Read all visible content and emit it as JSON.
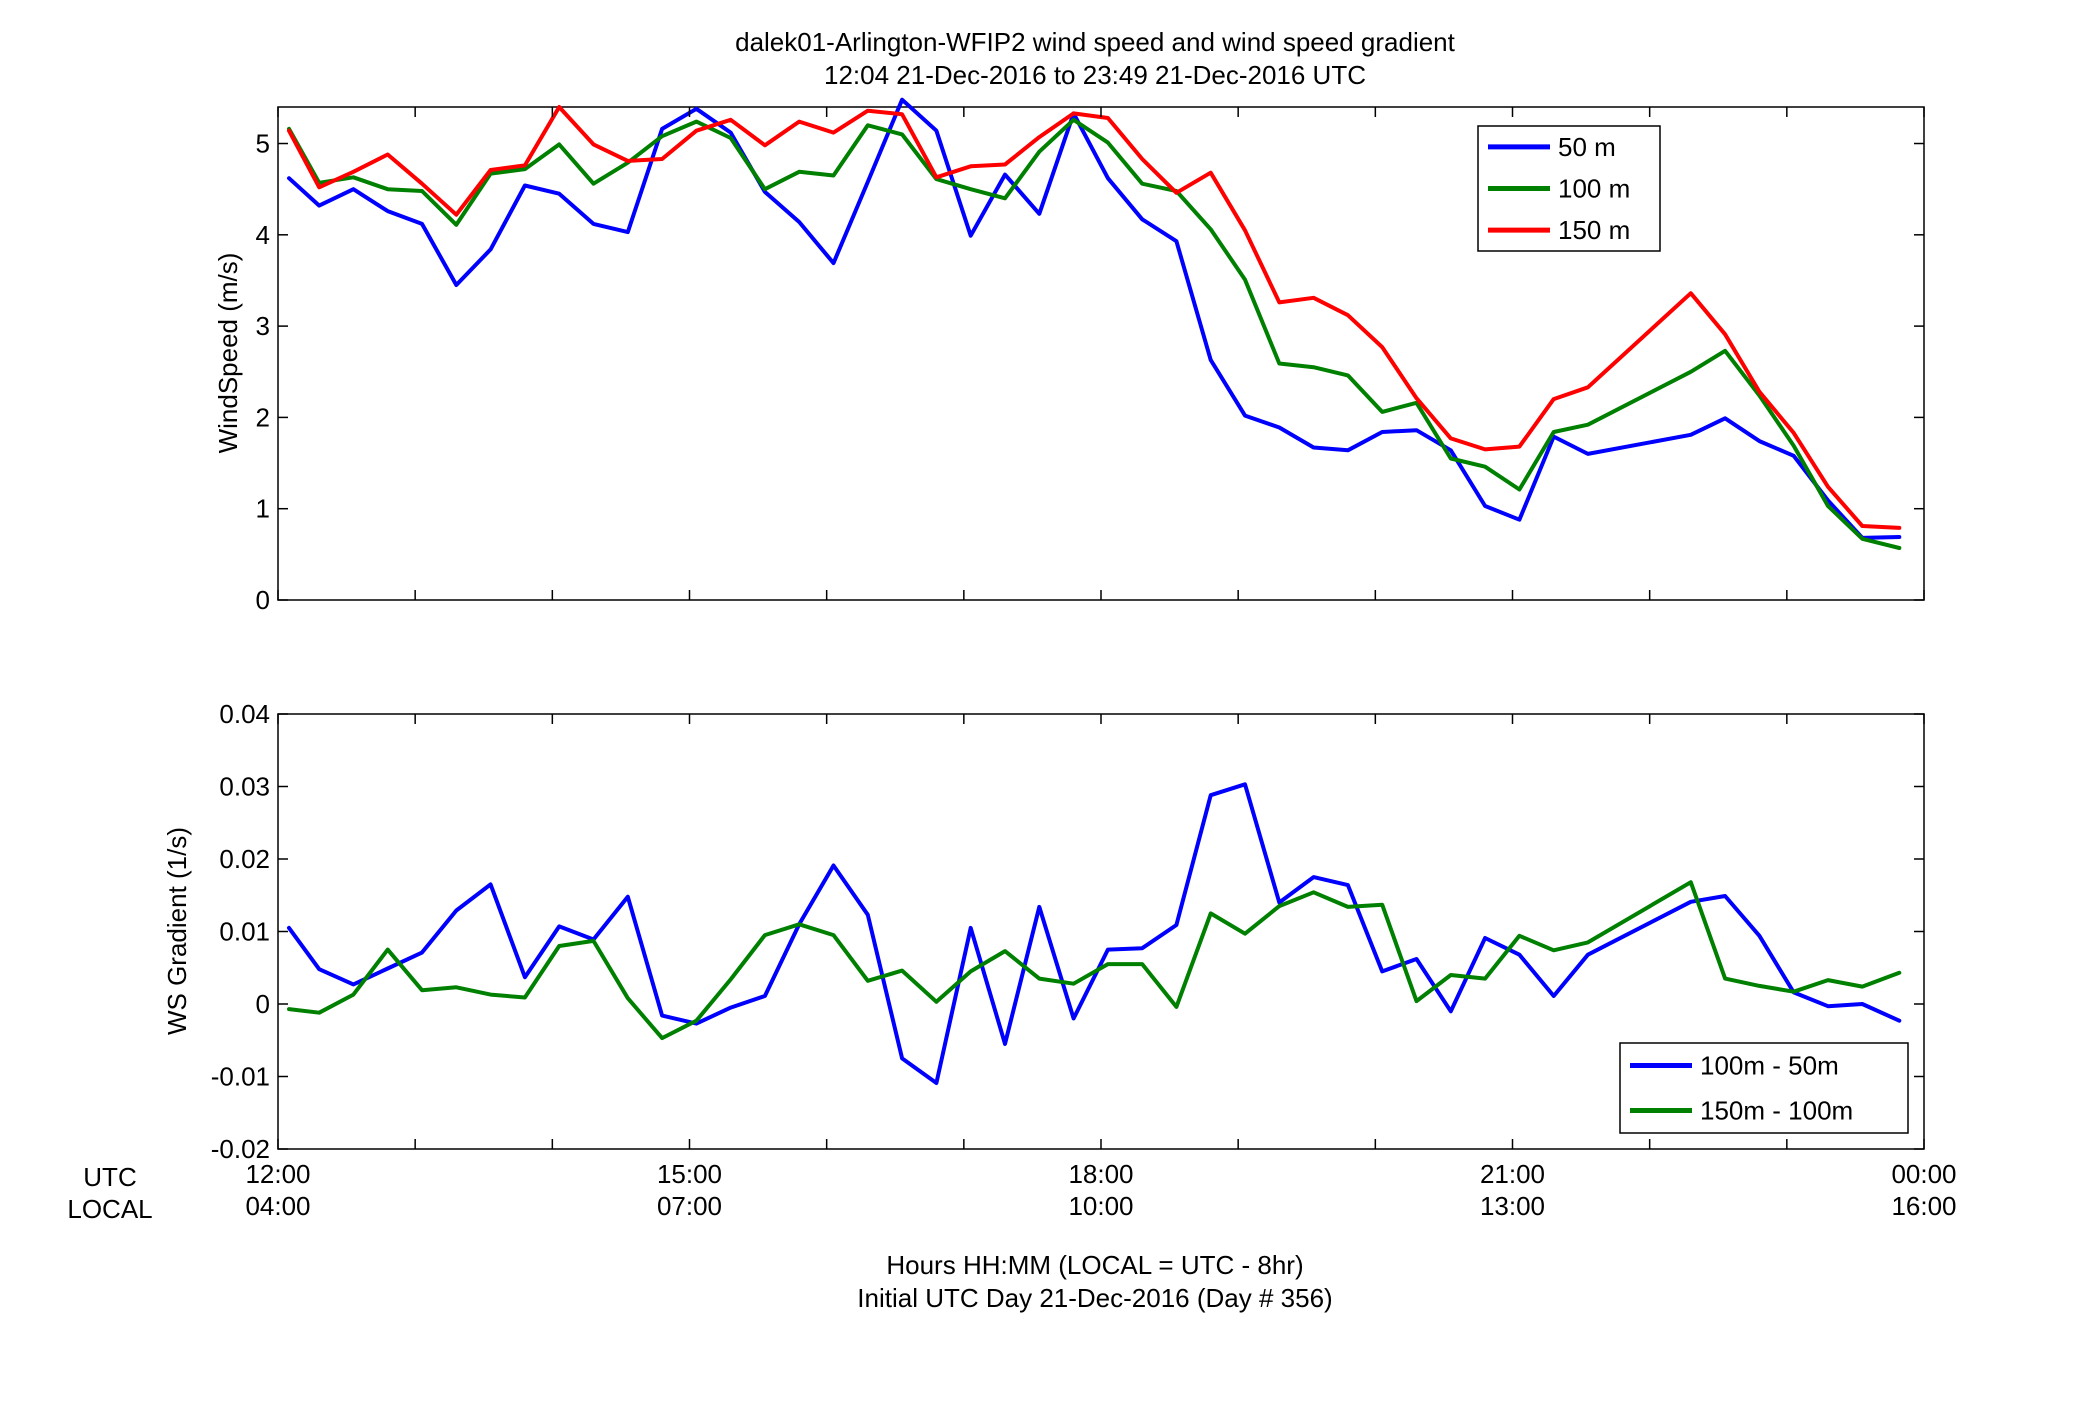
{
  "figure": {
    "title_line1": "dalek01-Arlington-WFIP2  wind speed and wind speed gradient",
    "title_line2": "12:04 21-Dec-2016 to 23:49 21-Dec-2016  UTC",
    "xlabel_line1": "Hours HH:MM  (LOCAL = UTC - 8hr)",
    "xlabel_line2": "Initial UTC Day 21-Dec-2016 (Day # 356)",
    "utc_row_label": "UTC",
    "local_row_label": "LOCAL",
    "x_ticks_utc": [
      "12:00",
      "15:00",
      "18:00",
      "21:00",
      "00:00"
    ],
    "x_ticks_local": [
      "04:00",
      "07:00",
      "10:00",
      "13:00",
      "16:00"
    ]
  },
  "chart_data": [
    {
      "type": "line",
      "ylabel": "WindSpeed (m/s)",
      "xlabel": "",
      "xlim": [
        12.0,
        24.0
      ],
      "ylim": [
        0,
        5.4
      ],
      "yticks": [
        0,
        1,
        2,
        3,
        4,
        5
      ],
      "grid": false,
      "legend_position": "top-right",
      "x": [
        12.08,
        12.3,
        12.55,
        12.8,
        13.05,
        13.3,
        13.55,
        13.8,
        14.05,
        14.3,
        14.55,
        14.8,
        15.05,
        15.3,
        15.55,
        15.8,
        16.05,
        16.3,
        16.55,
        16.8,
        17.05,
        17.3,
        17.55,
        17.8,
        18.05,
        18.3,
        18.55,
        18.8,
        19.05,
        19.3,
        19.55,
        19.8,
        20.05,
        20.3,
        20.55,
        20.8,
        21.05,
        21.3,
        21.55,
        22.3,
        22.55,
        22.8,
        23.05,
        23.3,
        23.55,
        23.82
      ],
      "series": [
        {
          "name": "50 m",
          "color": "#0000ff",
          "values": [
            4.62,
            4.32,
            4.5,
            4.26,
            4.12,
            3.45,
            3.84,
            4.54,
            4.45,
            4.12,
            4.03,
            5.16,
            5.38,
            5.12,
            4.47,
            4.14,
            3.69,
            4.58,
            5.48,
            5.14,
            3.99,
            4.66,
            4.23,
            5.33,
            4.62,
            4.17,
            3.93,
            2.63,
            2.02,
            1.89,
            1.67,
            1.64,
            1.84,
            1.86,
            1.64,
            1.03,
            0.88,
            1.79,
            1.6,
            1.81,
            1.99,
            1.74,
            1.58,
            1.09,
            0.68,
            0.69
          ]
        },
        {
          "name": "100 m",
          "color": "#008000",
          "values": [
            5.16,
            4.57,
            4.63,
            4.5,
            4.48,
            4.11,
            4.67,
            4.72,
            4.99,
            4.56,
            4.79,
            5.08,
            5.24,
            5.06,
            4.5,
            4.69,
            4.65,
            5.2,
            5.1,
            4.61,
            4.5,
            4.4,
            4.91,
            5.26,
            5.01,
            4.56,
            4.48,
            4.06,
            3.51,
            2.59,
            2.55,
            2.46,
            2.06,
            2.16,
            1.55,
            1.46,
            1.21,
            1.84,
            1.92,
            2.5,
            2.73,
            2.24,
            1.69,
            1.03,
            0.67,
            0.57
          ]
        },
        {
          "name": "150 m",
          "color": "#ff0000",
          "values": [
            5.14,
            4.52,
            4.69,
            4.88,
            4.56,
            4.22,
            4.71,
            4.76,
            5.4,
            4.99,
            4.81,
            4.83,
            5.14,
            5.26,
            4.98,
            5.24,
            5.12,
            5.36,
            5.32,
            4.63,
            4.75,
            4.77,
            5.07,
            5.33,
            5.28,
            4.83,
            4.46,
            4.68,
            4.05,
            3.26,
            3.31,
            3.12,
            2.77,
            2.21,
            1.77,
            1.65,
            1.68,
            2.2,
            2.33,
            3.36,
            2.91,
            2.28,
            1.83,
            1.24,
            0.81,
            0.79
          ]
        }
      ]
    },
    {
      "type": "line",
      "ylabel": "WS Gradient (1/s)",
      "xlabel": "",
      "xlim": [
        12.0,
        24.0
      ],
      "ylim": [
        -0.02,
        0.04
      ],
      "yticks": [
        -0.02,
        -0.01,
        0,
        0.01,
        0.02,
        0.03,
        0.04
      ],
      "ytick_labels": [
        "-0.02",
        "-0.01",
        "0",
        "0.01",
        "0.02",
        "0.03",
        "0.04"
      ],
      "grid": false,
      "legend_position": "bottom-right",
      "x": [
        12.08,
        12.3,
        12.55,
        12.8,
        13.05,
        13.3,
        13.55,
        13.8,
        14.05,
        14.3,
        14.55,
        14.8,
        15.05,
        15.3,
        15.55,
        15.8,
        16.05,
        16.3,
        16.55,
        16.8,
        17.05,
        17.3,
        17.55,
        17.8,
        18.05,
        18.3,
        18.55,
        18.8,
        19.05,
        19.3,
        19.55,
        19.8,
        20.05,
        20.3,
        20.55,
        20.8,
        21.05,
        21.3,
        21.55,
        22.3,
        22.55,
        22.8,
        23.05,
        23.3,
        23.55,
        23.82
      ],
      "series": [
        {
          "name": "100m - 50m",
          "color": "#0000ff",
          "values": [
            0.0105,
            0.0048,
            0.0027,
            0.0049,
            0.0071,
            0.0129,
            0.0165,
            0.0037,
            0.0107,
            0.0089,
            0.0148,
            -0.0016,
            -0.0027,
            -0.0005,
            0.0011,
            0.011,
            0.0191,
            0.0123,
            -0.0075,
            -0.0109,
            0.0105,
            -0.0055,
            0.0134,
            -0.002,
            0.0075,
            0.0077,
            0.0109,
            0.0288,
            0.0303,
            0.014,
            0.0175,
            0.0164,
            0.0045,
            0.0062,
            -0.001,
            0.0091,
            0.0068,
            0.0011,
            0.0068,
            0.0141,
            0.0149,
            0.0094,
            0.0016,
            -0.0003,
            0.0,
            -0.0023
          ]
        },
        {
          "name": "150m - 100m",
          "color": "#008000",
          "values": [
            -0.0007,
            -0.0012,
            0.0013,
            0.0075,
            0.0019,
            0.0023,
            0.0013,
            0.0009,
            0.008,
            0.0087,
            0.0008,
            -0.0047,
            -0.0023,
            0.0034,
            0.0095,
            0.011,
            0.0095,
            0.0032,
            0.0046,
            0.0003,
            0.0045,
            0.0073,
            0.0035,
            0.0028,
            0.0055,
            0.0055,
            -0.0004,
            0.0125,
            0.0097,
            0.0135,
            0.0154,
            0.0134,
            0.0137,
            0.0004,
            0.004,
            0.0035,
            0.0094,
            0.0074,
            0.0085,
            0.0168,
            0.0035,
            0.0025,
            0.0017,
            0.0033,
            0.0024,
            0.0043
          ]
        }
      ]
    }
  ]
}
